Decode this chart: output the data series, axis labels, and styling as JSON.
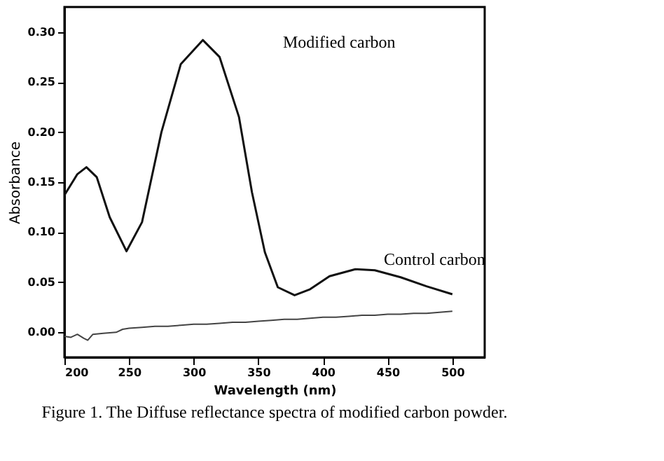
{
  "chart_data": {
    "type": "line",
    "xlabel": "Wavelength (nm)",
    "ylabel": "Absorbance",
    "xlim": [
      200,
      525
    ],
    "xticks": [
      200,
      250,
      300,
      350,
      400,
      450,
      500
    ],
    "ylim": [
      -0.025,
      0.325
    ],
    "yticks": [
      {
        "value": 0,
        "label": "0.00"
      },
      0.05,
      {
        "value": 0.1,
        "label": "0.10"
      },
      0.15,
      {
        "value": 0.2,
        "label": "0.20"
      },
      0.25,
      {
        "value": 0.3,
        "label": "0.30"
      }
    ],
    "grid": false,
    "marker": "none",
    "line_style": "solid",
    "series": [
      {
        "color": "#111111",
        "x": [
          200,
          210,
          217,
          225,
          235,
          248,
          260,
          275,
          290,
          307,
          320,
          335,
          345,
          355,
          365,
          378,
          390,
          405,
          425,
          440,
          460,
          480,
          500
        ],
        "values": [
          0.137,
          0.158,
          0.165,
          0.155,
          0.115,
          0.081,
          0.11,
          0.2,
          0.268,
          0.292,
          0.275,
          0.215,
          0.14,
          0.08,
          0.045,
          0.037,
          0.043,
          0.056,
          0.063,
          0.062,
          0.055,
          0.046,
          0.038
        ]
      },
      {
        "color": "#444444",
        "x": [
          200,
          205,
          210,
          215,
          218,
          222,
          230,
          240,
          245,
          250,
          260,
          270,
          280,
          290,
          300,
          310,
          320,
          330,
          340,
          350,
          360,
          370,
          380,
          390,
          400,
          410,
          420,
          430,
          440,
          450,
          460,
          470,
          480,
          490,
          500
        ],
        "values": [
          -0.004,
          -0.005,
          -0.002,
          -0.006,
          -0.008,
          -0.002,
          -0.001,
          0.0,
          0.003,
          0.004,
          0.005,
          0.006,
          0.006,
          0.007,
          0.008,
          0.008,
          0.009,
          0.01,
          0.01,
          0.011,
          0.012,
          0.013,
          0.013,
          0.014,
          0.015,
          0.015,
          0.016,
          0.017,
          0.017,
          0.018,
          0.018,
          0.019,
          0.019,
          0.02,
          0.021
        ]
      }
    ],
    "annotations": [
      "Modified carbon",
      "Control carbon",
      "Figure 1. The Diffuse reflectance spectra of modified carbon powder."
    ]
  }
}
